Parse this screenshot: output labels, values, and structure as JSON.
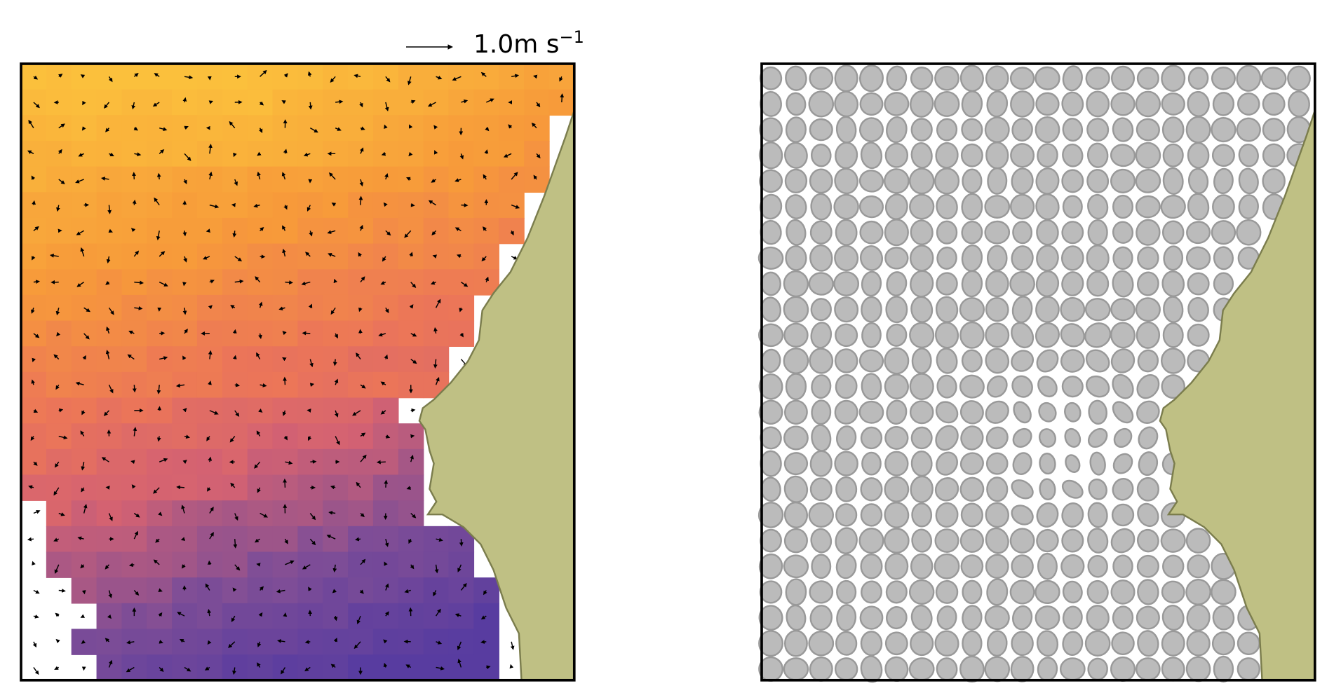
{
  "figure": {
    "scale_label": "1.0m s",
    "scale_exponent": "−1"
  }
}
